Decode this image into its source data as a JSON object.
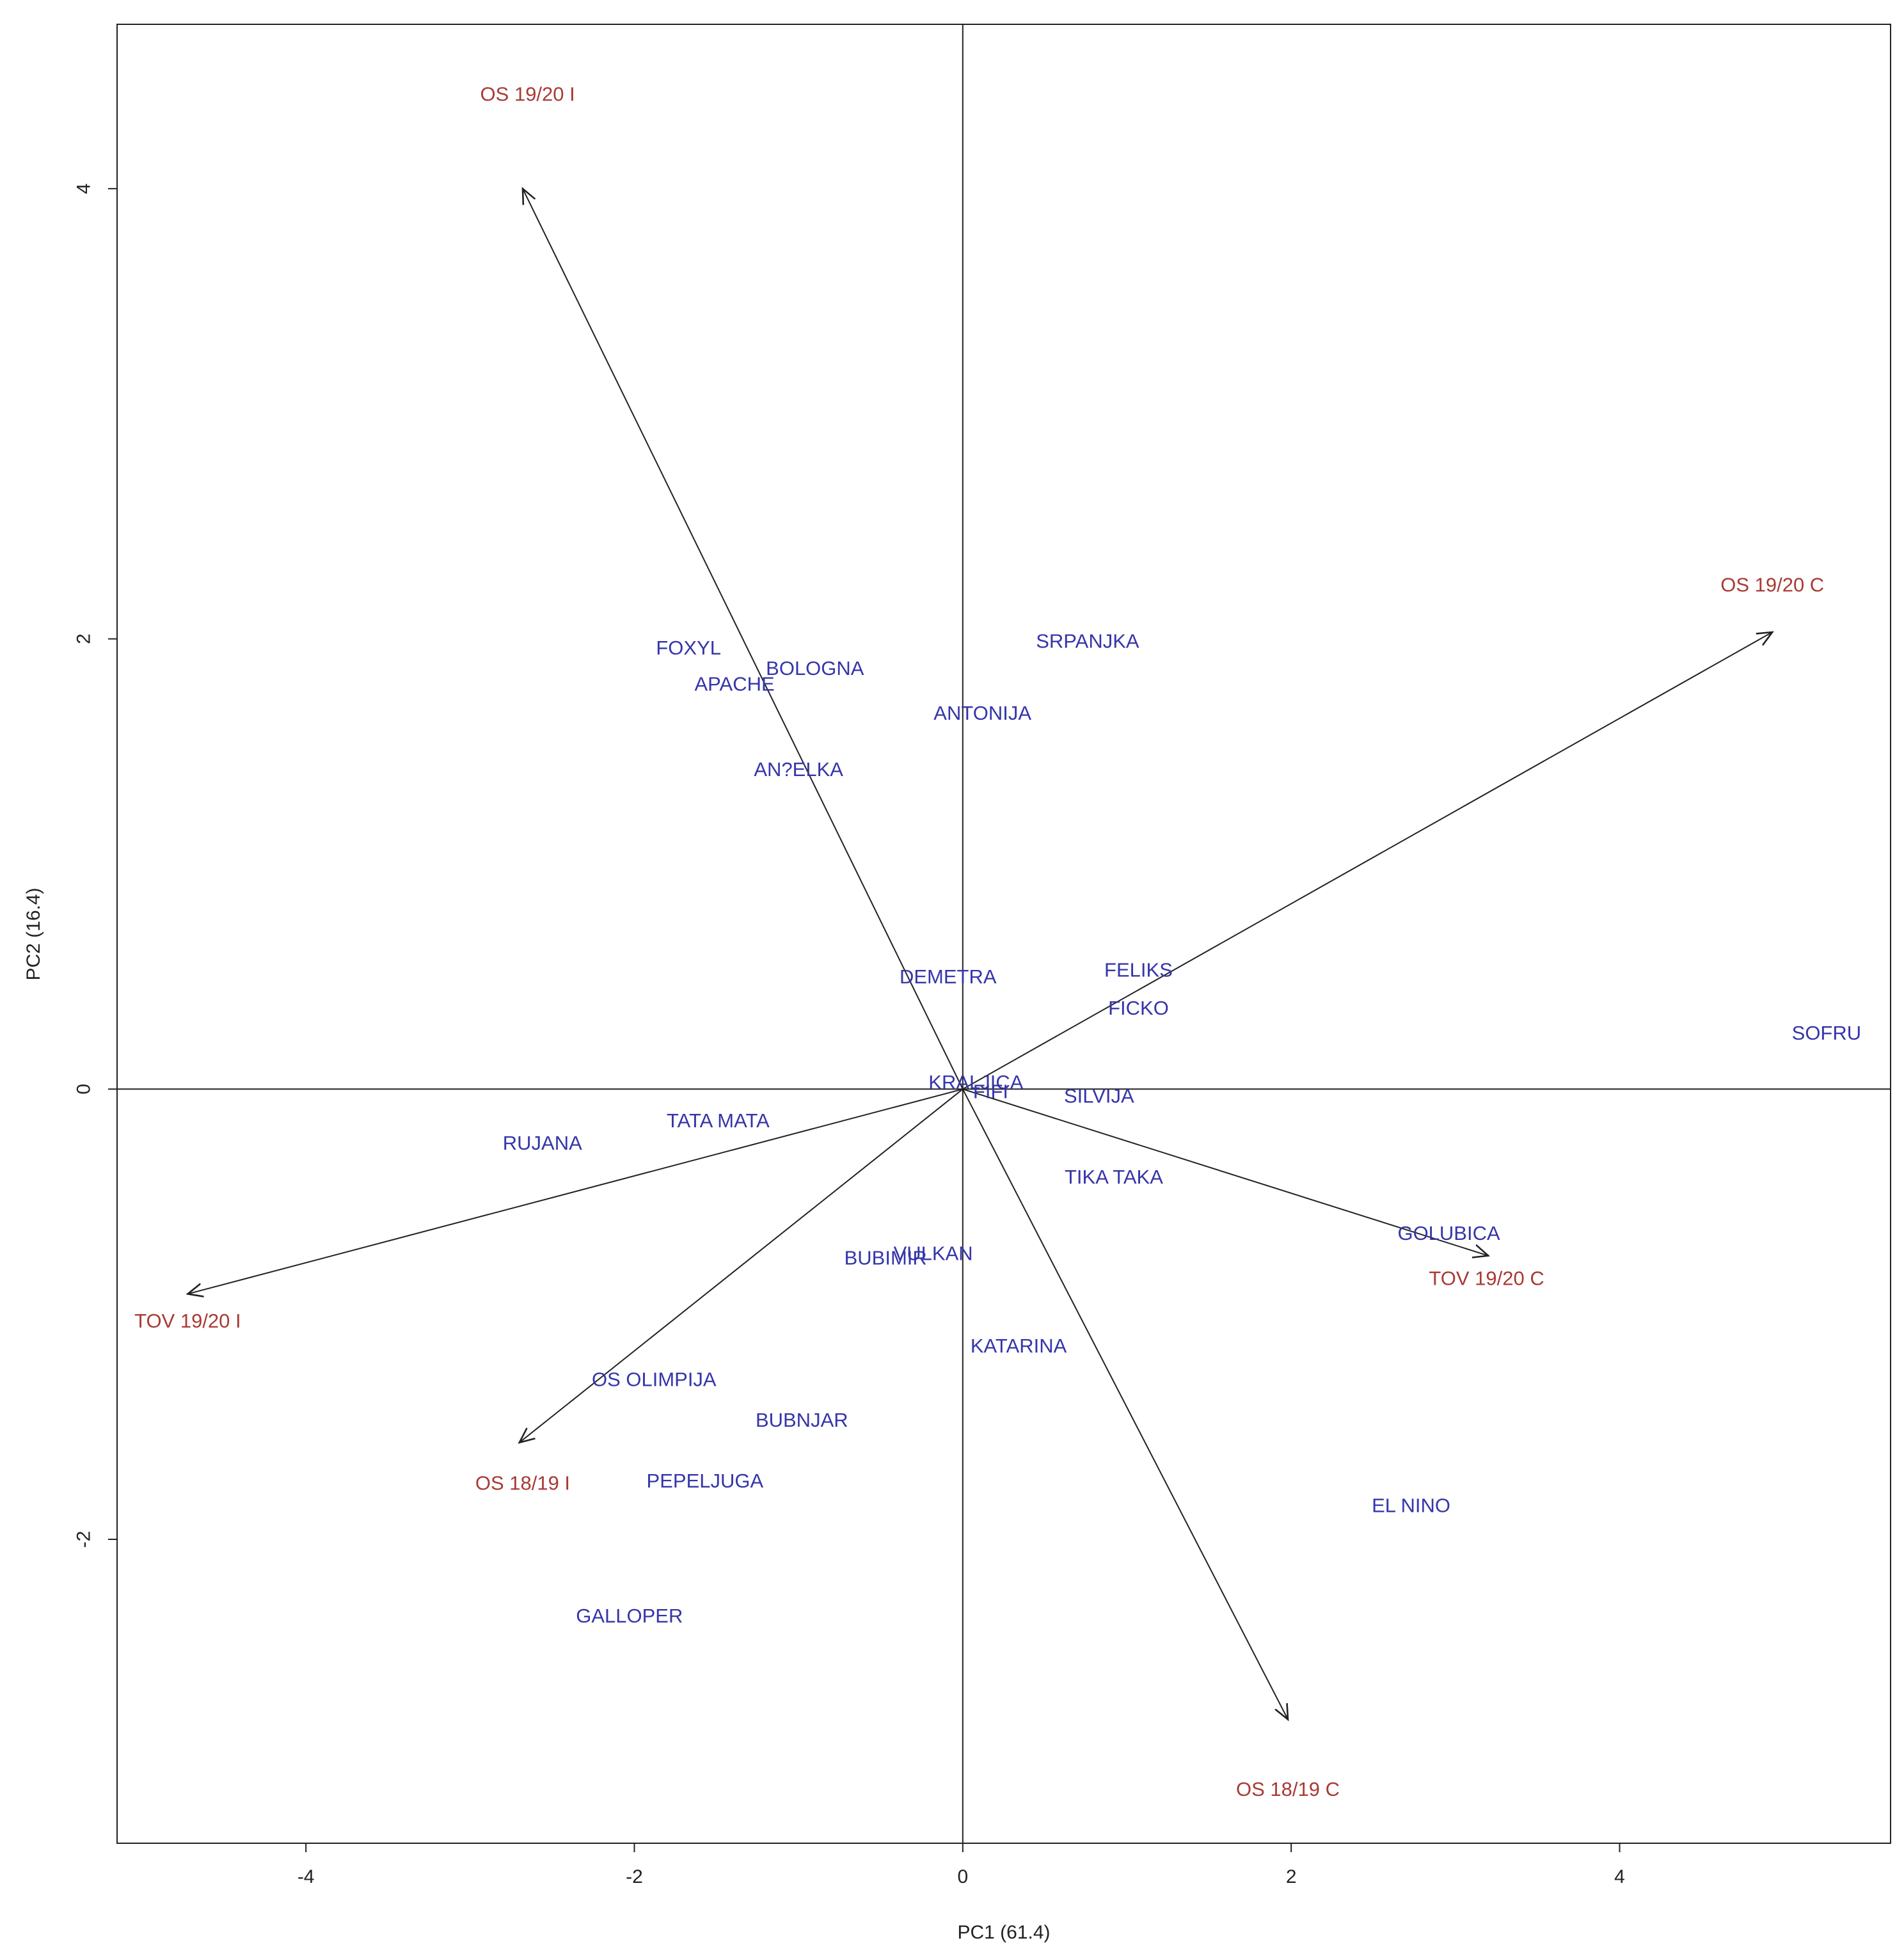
{
  "chart_data": {
    "type": "scatter",
    "title": "",
    "xlabel": "PC1 (61.4)",
    "ylabel": "PC2 (16.4)",
    "xlim": [
      -5.15,
      5.65
    ],
    "ylim": [
      -3.35,
      4.73
    ],
    "xticks": [
      {
        "value": -4,
        "label": "-4"
      },
      {
        "value": -2,
        "label": "-2"
      },
      {
        "value": 0,
        "label": "0"
      },
      {
        "value": 2,
        "label": "2"
      },
      {
        "value": 4,
        "label": "4"
      }
    ],
    "yticks": [
      {
        "value": -2,
        "label": "-2"
      },
      {
        "value": 0,
        "label": "0"
      },
      {
        "value": 2,
        "label": "2"
      },
      {
        "value": 4,
        "label": "4"
      }
    ],
    "reference_lines": {
      "x": 0,
      "y": 0
    },
    "grid": false,
    "legend": "none",
    "genotype_color": "#3535aa",
    "environment_color": "#a83a34",
    "arrow_color": "#222222",
    "genotypes": [
      {
        "label": "FOXYL",
        "x": -1.67,
        "y": 1.96
      },
      {
        "label": "BOLOGNA",
        "x": -0.9,
        "y": 1.87
      },
      {
        "label": "APACHE",
        "x": -1.39,
        "y": 1.8
      },
      {
        "label": "SRPANJKA",
        "x": 0.76,
        "y": 1.99
      },
      {
        "label": "ANTONIJA",
        "x": 0.12,
        "y": 1.67
      },
      {
        "label": "AN?ELKA",
        "x": -1.0,
        "y": 1.42
      },
      {
        "label": "DEMETRA",
        "x": -0.09,
        "y": 0.5
      },
      {
        "label": "FELIKS",
        "x": 1.07,
        "y": 0.53
      },
      {
        "label": "FICKO",
        "x": 1.07,
        "y": 0.36
      },
      {
        "label": "SOFRU",
        "x": 5.26,
        "y": 0.25
      },
      {
        "label": "KRALJICA",
        "x": 0.08,
        "y": 0.03
      },
      {
        "label": "FIFI",
        "x": 0.17,
        "y": -0.01
      },
      {
        "label": "SILVIJA",
        "x": 0.83,
        "y": -0.03
      },
      {
        "label": "TATA MATA",
        "x": -1.49,
        "y": -0.14
      },
      {
        "label": "RUJANA",
        "x": -2.56,
        "y": -0.24
      },
      {
        "label": "TIKA TAKA",
        "x": 0.92,
        "y": -0.39
      },
      {
        "label": "GOLUBICA",
        "x": 2.96,
        "y": -0.64
      },
      {
        "label": "VULKAN",
        "x": -0.18,
        "y": -0.73
      },
      {
        "label": "BUBIMIR",
        "x": -0.47,
        "y": -0.75
      },
      {
        "label": "KATARINA",
        "x": 0.34,
        "y": -1.14
      },
      {
        "label": "OS OLIMPIJA",
        "x": -1.88,
        "y": -1.29
      },
      {
        "label": "BUBNJAR",
        "x": -0.98,
        "y": -1.47
      },
      {
        "label": "PEPELJUGA",
        "x": -1.57,
        "y": -1.74
      },
      {
        "label": "EL NINO",
        "x": 2.73,
        "y": -1.85
      },
      {
        "label": "GALLOPER",
        "x": -2.03,
        "y": -2.34
      }
    ],
    "environments": [
      {
        "label": "OS 19/20 I",
        "x": -2.68,
        "y": 4.0,
        "label_x": -2.65,
        "label_y": 4.42
      },
      {
        "label": "OS 19/20 C",
        "x": 4.93,
        "y": 2.03,
        "label_x": 4.93,
        "label_y": 2.24
      },
      {
        "label": "TOV 19/20 C",
        "x": 3.2,
        "y": -0.74,
        "label_x": 3.19,
        "label_y": -0.84
      },
      {
        "label": "TOV 19/20 I",
        "x": -4.72,
        "y": -0.91,
        "label_x": -4.72,
        "label_y": -1.03
      },
      {
        "label": "OS 18/19 I",
        "x": -2.7,
        "y": -1.57,
        "label_x": -2.68,
        "label_y": -1.75
      },
      {
        "label": "OS 18/19 C",
        "x": 1.98,
        "y": -2.8,
        "label_x": 1.98,
        "label_y": -3.11
      }
    ]
  }
}
